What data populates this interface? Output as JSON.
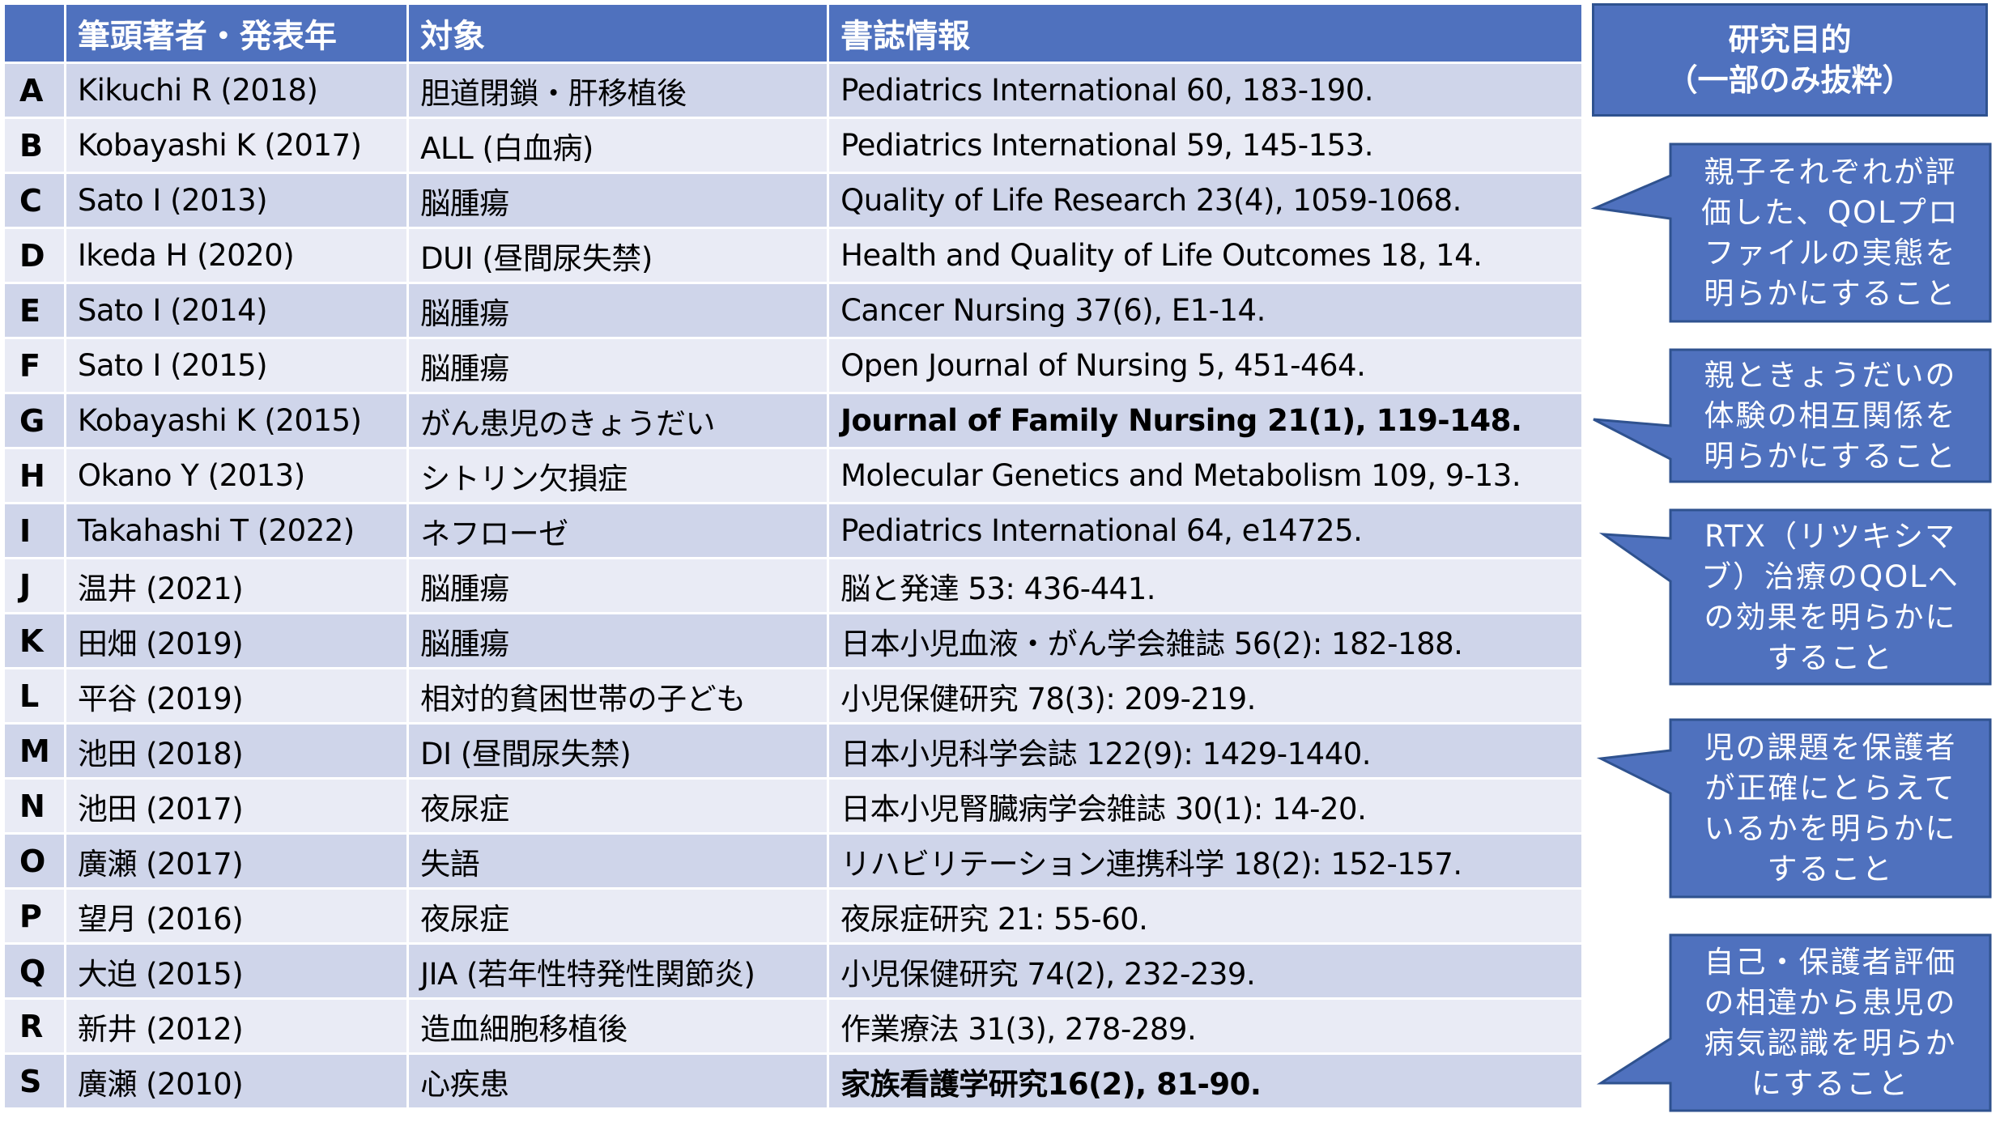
{
  "table": {
    "headers": [
      "",
      "筆頭著者・発表年",
      "対象",
      "書誌情報"
    ],
    "rows": [
      {
        "key": "A",
        "author": "Kikuchi R (2018)",
        "subject": "胆道閉鎖・肝移植後",
        "citation": "Pediatrics International 60, 183-190.",
        "bold": false
      },
      {
        "key": "B",
        "author": "Kobayashi K (2017)",
        "subject": "ALL (白血病)",
        "citation": "Pediatrics International 59, 145-153.",
        "bold": false
      },
      {
        "key": "C",
        "author": "Sato I (2013)",
        "subject": "脳腫瘍",
        "citation": "Quality of Life Research 23(4), 1059-1068.",
        "bold": false
      },
      {
        "key": "D",
        "author": "Ikeda H (2020)",
        "subject": "DUI (昼間尿失禁)",
        "citation": "Health and Quality of Life Outcomes 18, 14.",
        "bold": false
      },
      {
        "key": "E",
        "author": "Sato I (2014)",
        "subject": "脳腫瘍",
        "citation": "Cancer Nursing 37(6), E1-14.",
        "bold": false
      },
      {
        "key": "F",
        "author": "Sato I (2015)",
        "subject": "脳腫瘍",
        "citation": "Open Journal of Nursing 5, 451-464.",
        "bold": false
      },
      {
        "key": "G",
        "author": "Kobayashi K (2015)",
        "subject": "がん患児のきょうだい",
        "citation": "Journal of Family Nursing 21(1), 119-148.",
        "bold": true
      },
      {
        "key": "H",
        "author": "Okano Y (2013)",
        "subject": "シトリン欠損症",
        "citation": "Molecular Genetics and Metabolism 109, 9-13.",
        "bold": false
      },
      {
        "key": "I",
        "author": "Takahashi T (2022)",
        "subject": "ネフローゼ",
        "citation": "Pediatrics International 64, e14725.",
        "bold": false
      },
      {
        "key": "J",
        "author": "温井 (2021)",
        "subject": "脳腫瘍",
        "citation": "脳と発達 53: 436-441.",
        "bold": false
      },
      {
        "key": "K",
        "author": "田畑 (2019)",
        "subject": "脳腫瘍",
        "citation": "日本小児血液・がん学会雑誌 56(2): 182-188.",
        "bold": false
      },
      {
        "key": "L",
        "author": "平谷 (2019)",
        "subject": "相対的貧困世帯の子ども",
        "citation": "小児保健研究 78(3): 209-219.",
        "bold": false
      },
      {
        "key": "M",
        "author": "池田 (2018)",
        "subject": "DI (昼間尿失禁)",
        "citation": "日本小児科学会誌 122(9): 1429-1440.",
        "bold": false
      },
      {
        "key": "N",
        "author": "池田 (2017)",
        "subject": "夜尿症",
        "citation": "日本小児腎臓病学会雑誌 30(1): 14-20.",
        "bold": false
      },
      {
        "key": "O",
        "author": "廣瀬 (2017)",
        "subject": "失語",
        "citation": "リハビリテーション連携科学 18(2): 152-157.",
        "bold": false
      },
      {
        "key": "P",
        "author": "望月 (2016)",
        "subject": "夜尿症",
        "citation": "夜尿症研究 21: 55-60.",
        "bold": false
      },
      {
        "key": "Q",
        "author": "大迫 (2015)",
        "subject": "JIA (若年性特発性関節炎)",
        "citation": "小児保健研究 74(2), 232-239.",
        "bold": false
      },
      {
        "key": "R",
        "author": "新井 (2012)",
        "subject": "造血細胞移植後",
        "citation": "作業療法 31(3), 278-289.",
        "bold": false
      },
      {
        "key": "S",
        "author": "廣瀬 (2010)",
        "subject": "心疾患",
        "citation": "家族看護学研究16(2), 81-90.",
        "bold": true
      }
    ]
  },
  "purpose_header": {
    "line1": "研究目的",
    "line2": "（一部のみ抜粋）"
  },
  "callouts": [
    {
      "points_to": "C",
      "lines": [
        "親子それぞれが評",
        "価した、QOLプロ",
        "ファイルの実態を",
        "明らかにすること"
      ]
    },
    {
      "points_to": "G",
      "lines": [
        "親ときょうだいの",
        "体験の相互関係を",
        "明らかにすること"
      ]
    },
    {
      "points_to": "I",
      "lines": [
        "RTX（リツキシマ",
        "ブ）治療のQOLへ",
        "の効果を明らかに",
        "すること"
      ]
    },
    {
      "points_to": "M",
      "lines": [
        "児の課題を保護者",
        "が正確にとらえて",
        "いるかを明らかに",
        "すること"
      ]
    },
    {
      "points_to": "S",
      "lines": [
        "自己・保護者評価",
        "の相違から患児の",
        "病気認識を明らか",
        "にすること"
      ]
    }
  ],
  "colors": {
    "header_blue": "#4F71BE",
    "band_dark": "#CFD5EA",
    "band_light": "#E9EBF5",
    "callout_fill": "#4F71BE",
    "callout_border": "#2F528F",
    "text_white": "#FFFFFF"
  }
}
